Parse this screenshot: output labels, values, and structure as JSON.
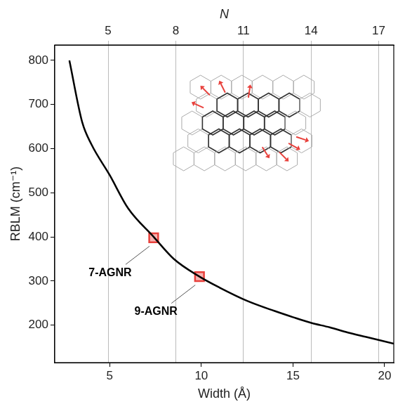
{
  "chart_data": {
    "type": "line",
    "x_label": "Width (Å)",
    "y_label": "RBLM (cm⁻¹)",
    "x2_label": "N",
    "x": [
      2.8,
      3.5,
      4,
      5,
      6,
      7.4,
      8.5,
      9.9,
      11,
      12.5,
      14,
      15,
      16,
      17,
      18,
      19,
      20.5
    ],
    "values": [
      800,
      660,
      610,
      540,
      465,
      400,
      350,
      310,
      285,
      255,
      232,
      218,
      205,
      195,
      183,
      173,
      158
    ],
    "color": "#000000",
    "points": [
      {
        "label": "7-AGNR",
        "x": 7.4,
        "y": 398,
        "color": "#e8413c",
        "marker": "square"
      },
      {
        "label": "9-AGNR",
        "x": 9.9,
        "y": 310,
        "color": "#e8413c",
        "marker": "square"
      }
    ],
    "xlim": [
      2,
      20.5
    ],
    "xticks": [
      5,
      10,
      15,
      20
    ],
    "x2lim": [
      2.63,
      17.67
    ],
    "x2ticks": [
      5,
      8,
      11,
      14,
      17
    ],
    "ylim": [
      115,
      835
    ],
    "yticks": [
      200,
      300,
      400,
      500,
      600,
      700,
      800
    ],
    "grid": true
  }
}
